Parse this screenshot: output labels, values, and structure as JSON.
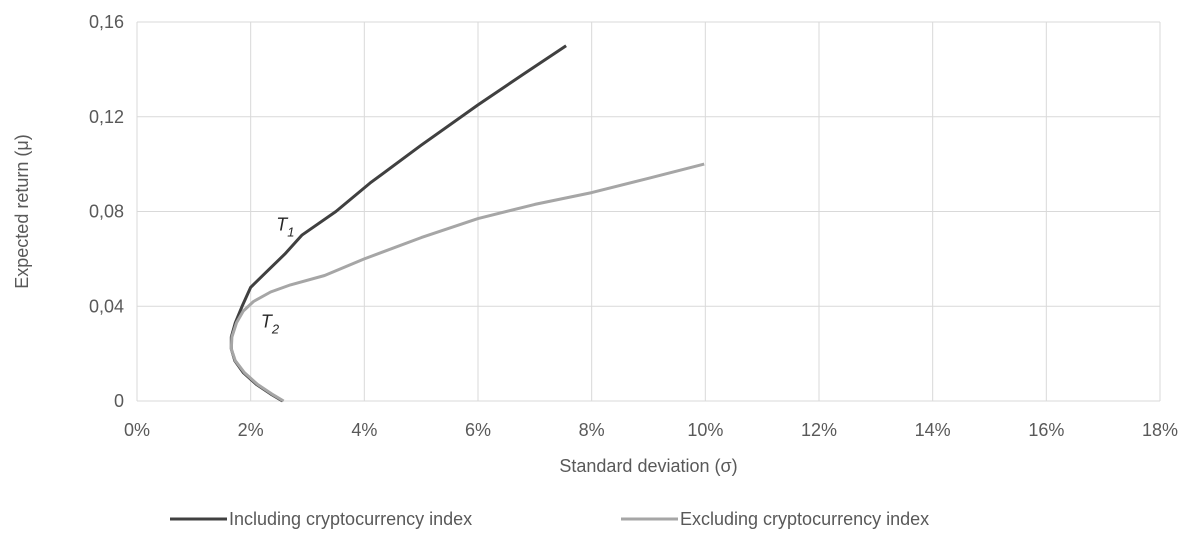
{
  "chart_data": {
    "type": "line",
    "title": "",
    "xlabel": "Standard deviation (σ)",
    "ylabel": "Expected return (μ)",
    "xlim": [
      0,
      0.18
    ],
    "ylim": [
      0,
      0.16
    ],
    "x_ticks": [
      0,
      0.02,
      0.04,
      0.06,
      0.08,
      0.1,
      0.12,
      0.14,
      0.16,
      0.18
    ],
    "x_tick_labels": [
      "0%",
      "2%",
      "4%",
      "6%",
      "8%",
      "10%",
      "12%",
      "14%",
      "16%",
      "18%"
    ],
    "y_ticks": [
      0,
      0.04,
      0.08,
      0.12,
      0.16
    ],
    "y_tick_labels": [
      "0",
      "0,04",
      "0,08",
      "0,12",
      "0,16"
    ],
    "grid": {
      "vertical": true,
      "horizontal": true
    },
    "legend_position": "bottom",
    "series": [
      {
        "name": "Including cryptocurrency index",
        "color": "#404040",
        "points": [
          [
            0.0256,
            0.0
          ],
          [
            0.0235,
            0.003
          ],
          [
            0.021,
            0.007
          ],
          [
            0.0187,
            0.012
          ],
          [
            0.0172,
            0.017
          ],
          [
            0.0166,
            0.022
          ],
          [
            0.0166,
            0.027
          ],
          [
            0.0173,
            0.033
          ],
          [
            0.0185,
            0.04
          ],
          [
            0.02,
            0.048
          ],
          [
            0.023,
            0.055
          ],
          [
            0.026,
            0.062
          ],
          [
            0.029,
            0.07
          ],
          [
            0.035,
            0.08
          ],
          [
            0.041,
            0.092
          ],
          [
            0.05,
            0.108
          ],
          [
            0.06,
            0.125
          ],
          [
            0.068,
            0.138
          ],
          [
            0.0755,
            0.15
          ]
        ]
      },
      {
        "name": "Excluding cryptocurrency index",
        "color": "#a6a6a6",
        "points": [
          [
            0.0258,
            0.0
          ],
          [
            0.0237,
            0.003
          ],
          [
            0.0212,
            0.007
          ],
          [
            0.0189,
            0.012
          ],
          [
            0.0173,
            0.017
          ],
          [
            0.0166,
            0.022
          ],
          [
            0.0167,
            0.027
          ],
          [
            0.0175,
            0.033
          ],
          [
            0.0187,
            0.038
          ],
          [
            0.0205,
            0.042
          ],
          [
            0.0235,
            0.046
          ],
          [
            0.027,
            0.049
          ],
          [
            0.033,
            0.053
          ],
          [
            0.04,
            0.06
          ],
          [
            0.05,
            0.069
          ],
          [
            0.06,
            0.077
          ],
          [
            0.07,
            0.083
          ],
          [
            0.08,
            0.088
          ],
          [
            0.09,
            0.094
          ],
          [
            0.0998,
            0.1
          ]
        ]
      }
    ],
    "annotations": [
      {
        "label": "T",
        "sub": "1",
        "x": 0.0245,
        "y": 0.072
      },
      {
        "label": "T",
        "sub": "2",
        "x": 0.0218,
        "y": 0.031
      }
    ]
  }
}
